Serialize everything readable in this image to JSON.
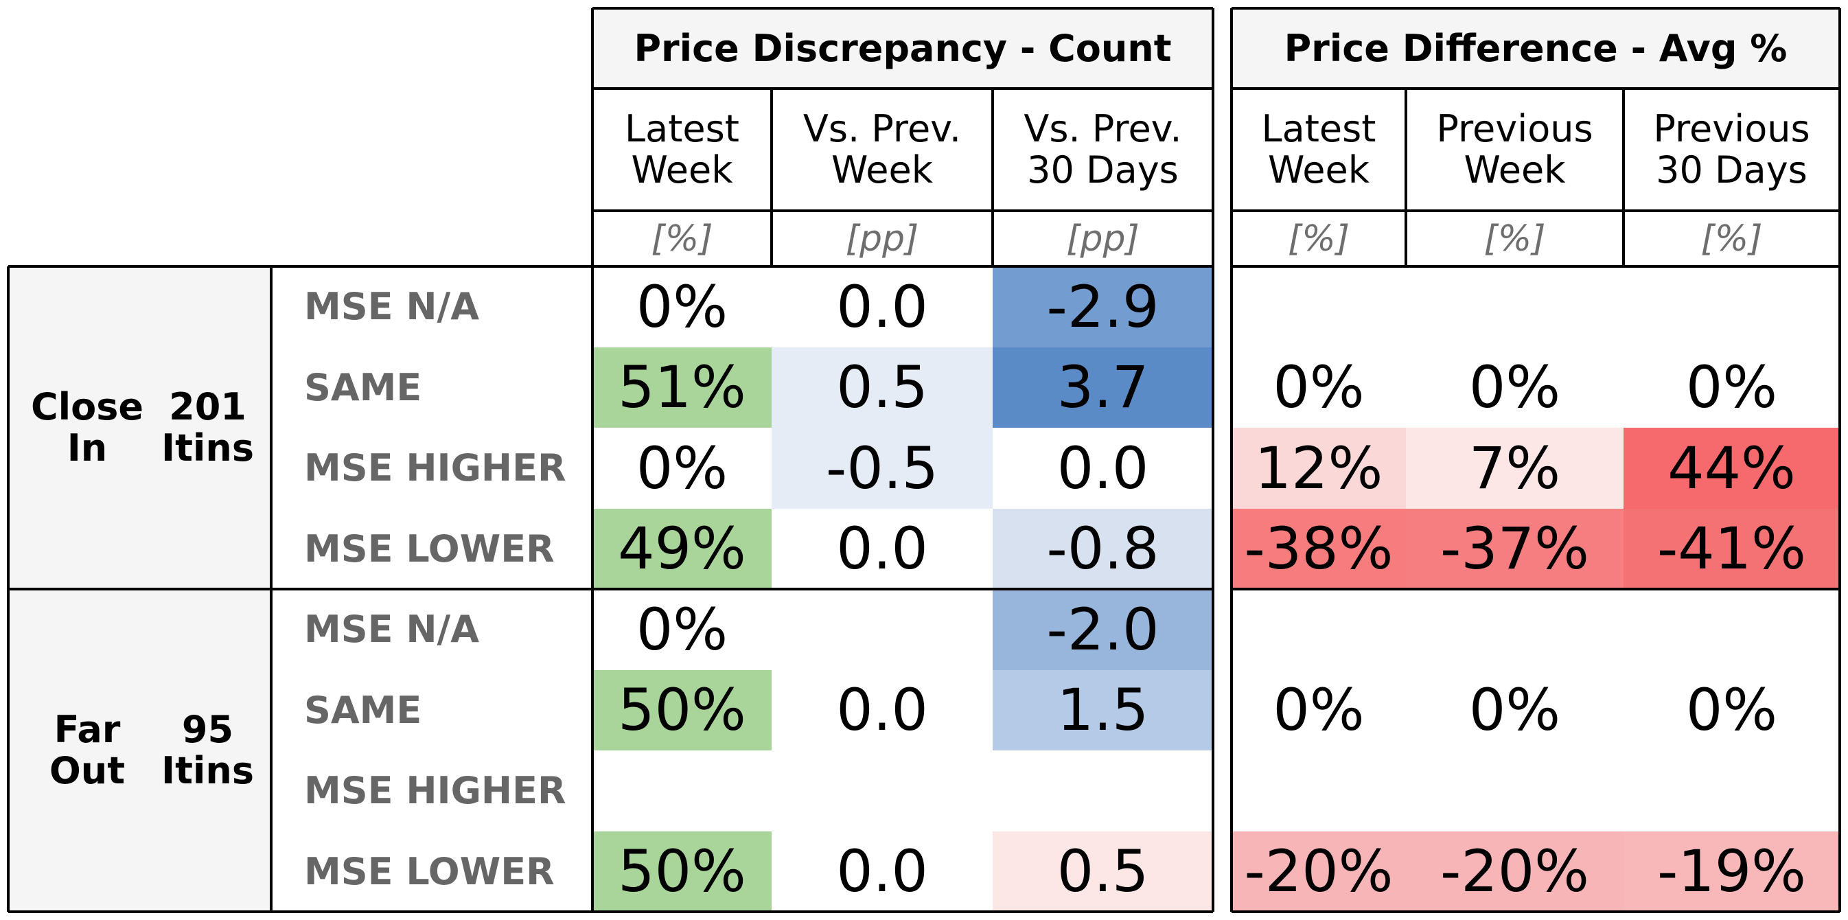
{
  "chart_data": {
    "type": "table",
    "groups": [
      {
        "title": "Price Discrepancy - Count",
        "columns": [
          {
            "title": "Latest\nWeek",
            "unit": "[%]"
          },
          {
            "title": "Vs. Prev.\nWeek",
            "unit": "[pp]"
          },
          {
            "title": "Vs. Prev.\n30 Days",
            "unit": "[pp]"
          }
        ]
      },
      {
        "title": "Price Difference - Avg %",
        "columns": [
          {
            "title": "Latest\nWeek",
            "unit": "[%]"
          },
          {
            "title": "Previous\nWeek",
            "unit": "[%]"
          },
          {
            "title": "Previous\n30 Days",
            "unit": "[%]"
          }
        ]
      }
    ],
    "segments": [
      {
        "name": "Close\nIn",
        "itins": "201\nItins",
        "rows": [
          {
            "label": "MSE N/A",
            "values": [
              "0%",
              "0.0",
              "-2.9",
              "",
              "",
              ""
            ],
            "colors": [
              "",
              "",
              "#739dd0",
              "",
              "",
              ""
            ]
          },
          {
            "label": "SAME",
            "values": [
              "51%",
              "0.5",
              "3.7",
              "0%",
              "0%",
              "0%"
            ],
            "colors": [
              "#a9d59a",
              "#e6ecf6",
              "#5b8bc6",
              "",
              "",
              ""
            ]
          },
          {
            "label": "MSE HIGHER",
            "values": [
              "0%",
              "-0.5",
              "0.0",
              "12%",
              "7%",
              "44%"
            ],
            "colors": [
              "",
              "#e6ecf6",
              "",
              "#fbd8d8",
              "#fce6e6",
              "#f66a6e"
            ]
          },
          {
            "label": "MSE LOWER",
            "values": [
              "49%",
              "0.0",
              "-0.8",
              "-38%",
              "-37%",
              "-41%"
            ],
            "colors": [
              "#a9d59a",
              "",
              "#d7e1ef",
              "#f67c7e",
              "#f67e80",
              "#f57274"
            ]
          }
        ]
      },
      {
        "name": "Far\nOut",
        "itins": "95\nItins",
        "rows": [
          {
            "label": "MSE N/A",
            "values": [
              "0%",
              "",
              "-2.0",
              "",
              "",
              ""
            ],
            "colors": [
              "",
              "",
              "#98b5dc",
              "",
              "",
              ""
            ]
          },
          {
            "label": "SAME",
            "values": [
              "50%",
              "0.0",
              "1.5",
              "0%",
              "0%",
              "0%"
            ],
            "colors": [
              "#a9d59a",
              "",
              "#b5cae6",
              "",
              "",
              ""
            ]
          },
          {
            "label": "MSE HIGHER",
            "values": [
              "",
              "",
              "",
              "",
              "",
              ""
            ],
            "colors": [
              "",
              "",
              "",
              "",
              "",
              ""
            ]
          },
          {
            "label": "MSE LOWER",
            "values": [
              "50%",
              "0.0",
              "0.5",
              "-20%",
              "-20%",
              "-19%"
            ],
            "colors": [
              "#a9d59a",
              "",
              "#fce6e6",
              "#f8b5b8",
              "#f8b5b8",
              "#f8b8ba"
            ]
          }
        ]
      }
    ]
  }
}
